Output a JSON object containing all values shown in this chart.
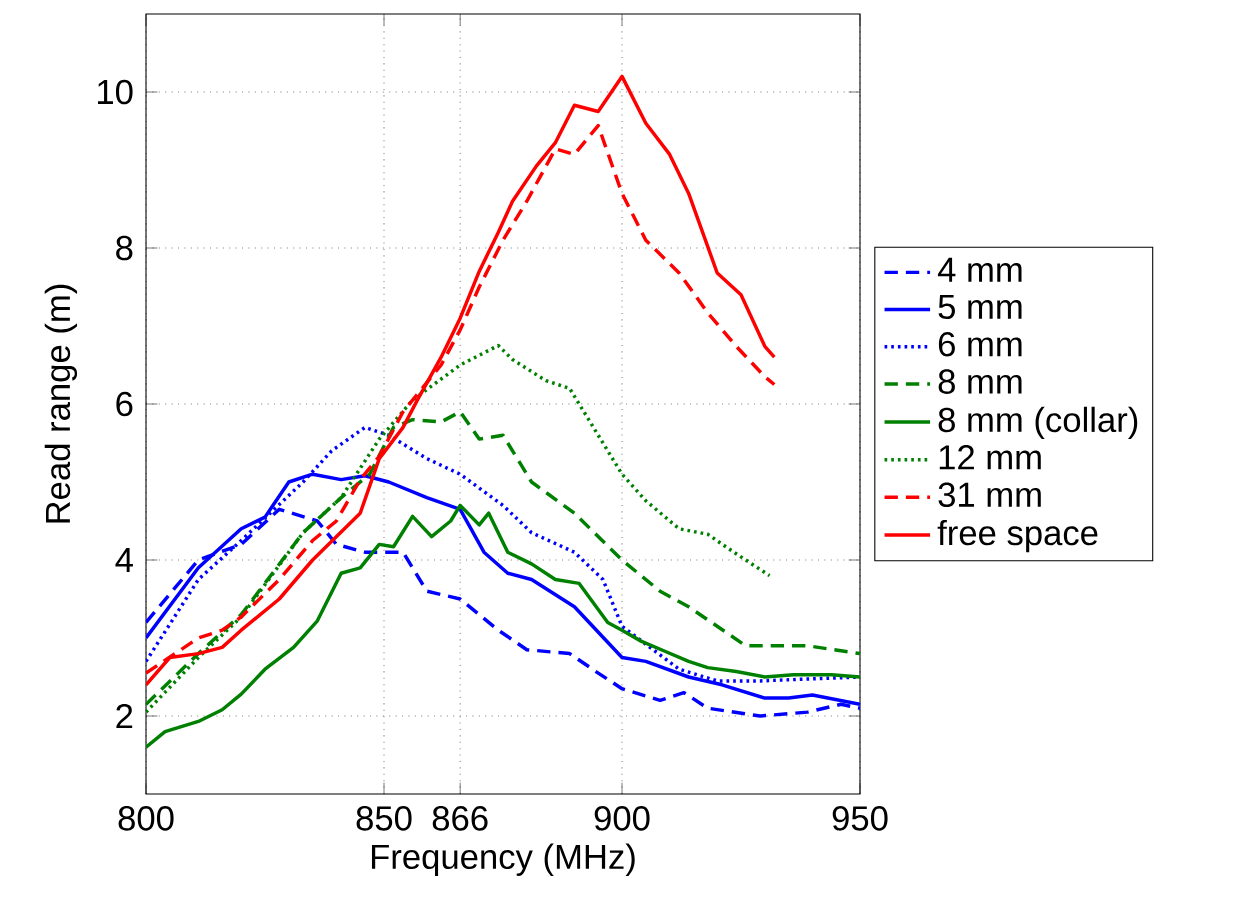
{
  "chart_data": {
    "type": "line",
    "xlabel": "Frequency (MHz)",
    "ylabel": "Read range (m)",
    "xlim": [
      800,
      950
    ],
    "ylim": [
      1,
      11
    ],
    "xticks": [
      800,
      850,
      866,
      900,
      950
    ],
    "yticks": [
      2,
      4,
      6,
      8,
      10
    ],
    "grid": true,
    "legend": "right",
    "series": [
      {
        "name": "4 mm",
        "color": "#0000ff",
        "line_style": "dashed",
        "x": [
          800,
          811,
          820,
          828,
          836,
          840,
          846,
          854,
          859,
          866,
          874,
          880,
          889,
          895,
          900,
          908,
          913,
          918,
          929,
          939,
          946,
          950
        ],
        "values": [
          3.2,
          4.0,
          4.2,
          4.65,
          4.5,
          4.2,
          4.1,
          4.1,
          3.6,
          3.5,
          3.1,
          2.85,
          2.8,
          2.55,
          2.35,
          2.2,
          2.3,
          2.1,
          2.0,
          2.05,
          2.15,
          2.1
        ]
      },
      {
        "name": "5 mm",
        "color": "#0000ff",
        "line_style": "solid",
        "x": [
          800,
          811,
          820,
          825,
          830,
          835,
          841,
          846,
          851,
          859,
          866,
          871,
          876,
          881,
          890,
          900,
          905,
          914,
          921,
          930,
          935,
          940,
          950
        ],
        "values": [
          3.0,
          3.9,
          4.4,
          4.55,
          5.0,
          5.1,
          5.03,
          5.08,
          5.0,
          4.8,
          4.65,
          4.1,
          3.83,
          3.75,
          3.4,
          2.75,
          2.7,
          2.5,
          2.4,
          2.23,
          2.23,
          2.27,
          2.15
        ]
      },
      {
        "name": "6 mm",
        "color": "#0000ff",
        "line_style": "dotted",
        "x": [
          800,
          811,
          820,
          833,
          839,
          846,
          851,
          859,
          866,
          875,
          881,
          890,
          896,
          900,
          912,
          920,
          929,
          950
        ],
        "values": [
          2.7,
          3.75,
          4.25,
          5.0,
          5.4,
          5.7,
          5.6,
          5.3,
          5.1,
          4.7,
          4.35,
          4.1,
          3.75,
          3.15,
          2.6,
          2.45,
          2.45,
          2.5
        ]
      },
      {
        "name": "8 mm",
        "color": "#008000",
        "line_style": "dashed",
        "x": [
          800,
          811,
          820,
          833,
          841,
          847,
          852,
          856,
          862,
          866,
          870,
          875,
          881,
          890,
          900,
          908,
          914,
          926,
          939,
          950
        ],
        "values": [
          2.15,
          2.8,
          3.3,
          4.35,
          4.8,
          5.1,
          5.7,
          5.8,
          5.77,
          5.9,
          5.55,
          5.6,
          5.0,
          4.6,
          4.0,
          3.6,
          3.4,
          2.9,
          2.9,
          2.8
        ]
      },
      {
        "name": "8 mm (collar)",
        "color": "#008000",
        "line_style": "solid",
        "x": [
          800,
          804,
          811,
          816,
          820,
          825,
          831,
          836,
          841,
          845,
          849,
          852,
          856,
          860,
          864,
          866,
          870,
          872,
          876,
          881,
          886,
          891,
          897,
          900,
          904,
          909,
          914,
          918,
          924,
          930,
          936,
          944,
          950
        ],
        "values": [
          1.6,
          1.8,
          1.93,
          2.08,
          2.28,
          2.6,
          2.88,
          3.22,
          3.83,
          3.9,
          4.2,
          4.17,
          4.56,
          4.3,
          4.5,
          4.7,
          4.45,
          4.6,
          4.1,
          3.95,
          3.75,
          3.7,
          3.2,
          3.1,
          2.96,
          2.83,
          2.7,
          2.62,
          2.57,
          2.5,
          2.53,
          2.53,
          2.5
        ]
      },
      {
        "name": "12 mm",
        "color": "#008000",
        "line_style": "dotted",
        "x": [
          800,
          811,
          820,
          833,
          841,
          849,
          856,
          866,
          874,
          877,
          884,
          889,
          894,
          900,
          905,
          912,
          918,
          924,
          931
        ],
        "values": [
          2.05,
          2.75,
          3.27,
          4.35,
          4.8,
          5.55,
          6.05,
          6.5,
          6.75,
          6.57,
          6.3,
          6.2,
          5.7,
          5.1,
          4.76,
          4.4,
          4.33,
          4.08,
          3.8
        ]
      },
      {
        "name": "31 mm",
        "color": "#ff0000",
        "line_style": "dashed",
        "x": [
          800,
          811,
          816,
          820,
          828,
          835,
          840,
          845,
          849,
          854,
          862,
          866,
          870,
          875,
          880,
          886,
          890,
          895,
          900,
          905,
          912,
          918,
          924,
          930,
          932
        ],
        "values": [
          2.55,
          3.0,
          3.1,
          3.27,
          3.75,
          4.25,
          4.5,
          5.03,
          5.33,
          5.9,
          6.5,
          6.95,
          7.5,
          8.1,
          8.6,
          9.27,
          9.2,
          9.57,
          8.7,
          8.1,
          7.68,
          7.17,
          6.74,
          6.35,
          6.25
        ]
      },
      {
        "name": "free space",
        "color": "#ff0000",
        "line_style": "solid",
        "x": [
          800,
          805,
          811,
          816,
          820,
          828,
          835,
          840,
          845,
          849,
          854,
          857,
          862,
          866,
          870,
          874,
          877,
          882,
          886,
          890,
          895,
          900,
          905,
          910,
          914,
          920,
          925,
          930,
          932
        ],
        "values": [
          2.4,
          2.75,
          2.8,
          2.88,
          3.1,
          3.5,
          4.0,
          4.3,
          4.6,
          5.3,
          5.7,
          6.05,
          6.6,
          7.1,
          7.7,
          8.2,
          8.6,
          9.05,
          9.35,
          9.83,
          9.75,
          10.2,
          9.6,
          9.2,
          8.7,
          7.68,
          7.4,
          6.74,
          6.6
        ]
      }
    ]
  }
}
